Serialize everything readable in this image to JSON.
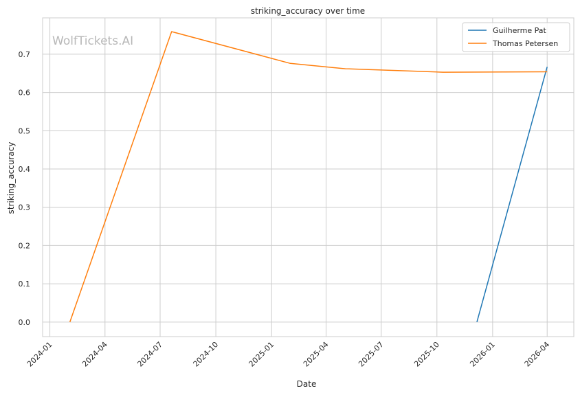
{
  "chart_data": {
    "type": "line",
    "title": "striking_accuracy over time",
    "xlabel": "Date",
    "ylabel": "striking_accuracy",
    "watermark": "WolfTickets.AI",
    "x_tick_labels": [
      "2024-01",
      "2024-04",
      "2024-07",
      "2024-10",
      "2025-01",
      "2025-04",
      "2025-07",
      "2025-10",
      "2026-01",
      "2026-04"
    ],
    "y_ticks": [
      0.0,
      0.1,
      0.2,
      0.3,
      0.4,
      0.5,
      0.6,
      0.7
    ],
    "y_tick_labels": [
      "0.0",
      "0.1",
      "0.2",
      "0.3",
      "0.4",
      "0.5",
      "0.6",
      "0.7"
    ],
    "xlim": [
      "2023-12-20",
      "2026-05-15"
    ],
    "ylim": [
      -0.038,
      0.795
    ],
    "grid": true,
    "legend_position": "top-right",
    "series": [
      {
        "name": "Guilherme Pat",
        "color": "#1f77b4",
        "points": [
          {
            "x": "2025-12-06",
            "y": 0.0
          },
          {
            "x": "2026-04-01",
            "y": 0.667
          }
        ]
      },
      {
        "name": "Thomas Petersen",
        "color": "#ff7f0e",
        "points": [
          {
            "x": "2024-02-03",
            "y": 0.0
          },
          {
            "x": "2024-07-20",
            "y": 0.759
          },
          {
            "x": "2025-02-01",
            "y": 0.676
          },
          {
            "x": "2025-05-03",
            "y": 0.662
          },
          {
            "x": "2025-10-11",
            "y": 0.653
          },
          {
            "x": "2026-04-01",
            "y": 0.654
          }
        ]
      }
    ]
  }
}
